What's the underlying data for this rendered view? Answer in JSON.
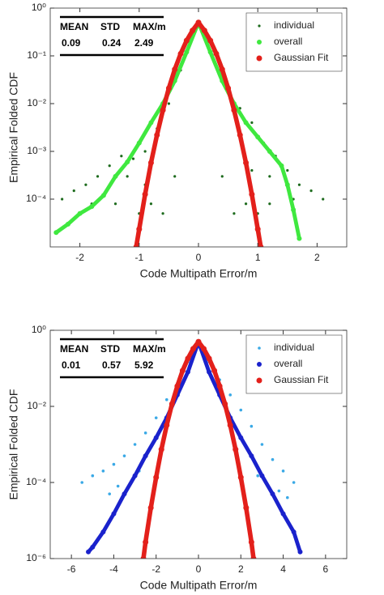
{
  "chart_data": [
    {
      "type": "scatter",
      "xlabel": "Code Multipath Error/m",
      "ylabel": "Empirical Folded CDF",
      "xlim": [
        -2.5,
        2.5
      ],
      "xticks": [
        -2,
        -1,
        0,
        1,
        2
      ],
      "ylog": true,
      "ylim": [
        1e-05,
        1
      ],
      "yticks": [
        {
          "value": 1,
          "label": "10⁰"
        },
        {
          "value": 0.1,
          "label": "10⁻¹"
        },
        {
          "value": 0.01,
          "label": "10⁻²"
        },
        {
          "value": 0.001,
          "label": "10⁻³"
        },
        {
          "value": 0.0001,
          "label": "10⁻⁴"
        }
      ],
      "legend": "northeast",
      "stats_headers": [
        "MEAN",
        "STD",
        "MAX/m"
      ],
      "stats_values": [
        "0.09",
        "0.24",
        "2.49"
      ],
      "series": [
        {
          "name": "individual",
          "color": "#1d6b1d",
          "size": 1.6,
          "x": [
            -2.3,
            -2.1,
            -1.9,
            -1.7,
            -1.5,
            -1.3,
            -1.1,
            -0.9,
            -0.7,
            -0.5,
            -0.3,
            -0.15,
            0.15,
            0.3,
            0.5,
            0.7,
            0.9,
            1.1,
            1.3,
            1.5,
            1.7,
            1.9,
            2.1,
            -1.8,
            -1.4,
            -1.0,
            -0.8,
            -0.6,
            -0.4,
            0.4,
            0.6,
            0.8,
            1.0,
            1.2,
            1.6,
            -1.2,
            -0.9,
            0.9,
            1.2
          ],
          "values": [
            0.0001,
            0.00015,
            0.0002,
            0.0003,
            0.0005,
            0.0008,
            0.0007,
            0.001,
            0.003,
            0.01,
            0.05,
            0.2,
            0.2,
            0.06,
            0.02,
            0.008,
            0.004,
            0.0015,
            0.0008,
            0.0004,
            0.0002,
            0.00015,
            0.0001,
            8e-05,
            8e-05,
            5e-05,
            8e-05,
            5e-05,
            0.0003,
            0.0003,
            5e-05,
            8e-05,
            5e-05,
            8e-05,
            0.0001,
            0.0003,
            0.0002,
            0.0004,
            0.0003
          ]
        },
        {
          "name": "overall",
          "color": "#3fe83f",
          "size": 3,
          "line": true,
          "x": [
            -2.4,
            -2.2,
            -2.0,
            -1.8,
            -1.6,
            -1.4,
            -1.2,
            -1.0,
            -0.8,
            -0.6,
            -0.4,
            -0.2,
            0,
            0.2,
            0.4,
            0.6,
            0.8,
            1.0,
            1.2,
            1.4,
            1.5,
            1.6,
            1.7
          ],
          "values": [
            2e-05,
            3e-05,
            5e-05,
            7e-05,
            0.00012,
            0.0003,
            0.0006,
            0.0015,
            0.004,
            0.01,
            0.03,
            0.12,
            0.5,
            0.12,
            0.03,
            0.01,
            0.004,
            0.002,
            0.001,
            0.0005,
            0.0002,
            6e-05,
            1.5e-05
          ]
        },
        {
          "name": "Gaussian Fit",
          "color": "#e3201b",
          "size": 3.5,
          "line": true,
          "x": [
            -1.05,
            -1.0,
            -0.9,
            -0.8,
            -0.7,
            -0.6,
            -0.5,
            -0.4,
            -0.3,
            -0.2,
            -0.1,
            0,
            0.1,
            0.2,
            0.3,
            0.4,
            0.5,
            0.6,
            0.7,
            0.8,
            0.9,
            1.0,
            1.05
          ],
          "values": [
            1e-05,
            2.35e-05,
            0.000126,
            0.00058,
            0.0022,
            0.0073,
            0.021,
            0.052,
            0.111,
            0.209,
            0.34,
            0.5,
            0.34,
            0.209,
            0.111,
            0.052,
            0.021,
            0.0073,
            0.0022,
            0.00058,
            0.000126,
            2.35e-05,
            1e-05
          ]
        }
      ]
    },
    {
      "type": "scatter",
      "xlabel": "Code Multipath Error/m",
      "ylabel": "Empirical Folded CDF",
      "xlim": [
        -7,
        7
      ],
      "xticks": [
        -6,
        -4,
        -2,
        0,
        2,
        4,
        6
      ],
      "ylog": true,
      "ylim": [
        1e-06,
        1
      ],
      "yticks": [
        {
          "value": 1,
          "label": "10⁰"
        },
        {
          "value": 0.01,
          "label": "10⁻²"
        },
        {
          "value": 0.0001,
          "label": "10⁻⁴"
        },
        {
          "value": 1e-06,
          "label": "10⁻⁶"
        }
      ],
      "legend": "northeast",
      "stats_headers": [
        "MEAN",
        "STD",
        "MAX/m"
      ],
      "stats_values": [
        "0.01",
        "0.57",
        "5.92"
      ],
      "series": [
        {
          "name": "individual",
          "color": "#3aa9e6",
          "size": 1.8,
          "x": [
            -5.5,
            -5,
            -4.5,
            -4,
            -3.5,
            -3,
            -2.5,
            -2,
            -1.5,
            -1,
            -0.5,
            -0.2,
            0.2,
            0.5,
            1,
            1.5,
            2,
            2.5,
            3,
            3.5,
            4,
            4.5,
            -4.2,
            -3.8,
            -3.2,
            -2.8,
            2.8,
            3.2,
            3.8,
            4.2
          ],
          "values": [
            0.0001,
            0.00015,
            0.0002,
            0.0003,
            0.0005,
            0.001,
            0.002,
            0.005,
            0.015,
            0.04,
            0.15,
            0.35,
            0.35,
            0.15,
            0.05,
            0.02,
            0.008,
            0.003,
            0.001,
            0.0004,
            0.0002,
            0.0001,
            5e-05,
            8e-05,
            0.0001,
            0.0002,
            0.00015,
            0.0001,
            6e-05,
            4e-05
          ]
        },
        {
          "name": "overall",
          "color": "#1a22cc",
          "size": 3,
          "line": true,
          "x": [
            -5.2,
            -5,
            -4.5,
            -4,
            -3.5,
            -3,
            -2.5,
            -2,
            -1.5,
            -1,
            -0.5,
            0,
            0.5,
            1,
            1.5,
            2,
            2.5,
            3,
            3.5,
            4,
            4.5,
            4.8
          ],
          "values": [
            1.5e-06,
            2e-06,
            5e-06,
            1.5e-05,
            5e-05,
            0.00015,
            0.0005,
            0.0015,
            0.005,
            0.02,
            0.08,
            0.5,
            0.08,
            0.02,
            0.005,
            0.0015,
            0.0005,
            0.00015,
            5e-05,
            1.5e-05,
            5e-06,
            1.5e-06
          ]
        },
        {
          "name": "Gaussian Fit",
          "color": "#e3201b",
          "size": 3.5,
          "line": true,
          "x": [
            -2.6,
            -2.5,
            -2.25,
            -2.0,
            -1.75,
            -1.5,
            -1.25,
            -1.0,
            -0.75,
            -0.5,
            -0.25,
            0,
            0.25,
            0.5,
            0.75,
            1.0,
            1.25,
            1.5,
            1.75,
            2.0,
            2.25,
            2.5,
            2.6
          ],
          "values": [
            1e-06,
            2.7e-06,
            2.16e-05,
            0.000136,
            0.00074,
            0.0032,
            0.0116,
            0.034,
            0.087,
            0.181,
            0.326,
            0.5,
            0.326,
            0.181,
            0.087,
            0.034,
            0.0116,
            0.0032,
            0.00074,
            0.000136,
            2.16e-05,
            2.7e-06,
            1e-06
          ]
        }
      ]
    }
  ]
}
